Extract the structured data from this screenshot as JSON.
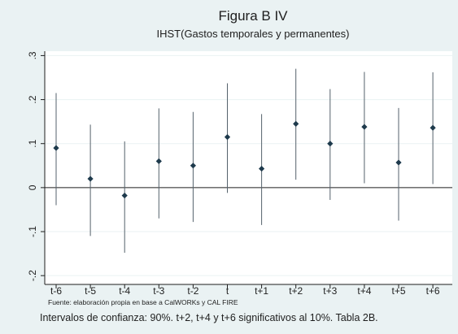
{
  "chart_data": {
    "type": "scatter",
    "title": "Figura B IV",
    "subtitle": "IHST(Gastos temporales y permanentes)",
    "categories": [
      "t-6",
      "t-5",
      "t-4",
      "t-3",
      "t-2",
      "t",
      "t+1",
      "t+2",
      "t+3",
      "t+4",
      "t+5",
      "t+6"
    ],
    "estimates": [
      0.09,
      0.02,
      -0.018,
      0.06,
      0.05,
      0.115,
      0.043,
      0.145,
      0.1,
      0.138,
      0.057,
      0.136
    ],
    "ci_lower": [
      -0.04,
      -0.11,
      -0.148,
      -0.07,
      -0.078,
      -0.012,
      -0.085,
      0.018,
      -0.028,
      0.01,
      -0.075,
      0.008
    ],
    "ci_upper": [
      0.215,
      0.143,
      0.105,
      0.18,
      0.172,
      0.237,
      0.167,
      0.27,
      0.224,
      0.263,
      0.181,
      0.262
    ],
    "ylim": [
      -0.22,
      0.31
    ],
    "yticks": [
      ".3",
      ".2",
      ".1",
      "0",
      "-.1",
      "-.2"
    ],
    "ytick_values": [
      0.3,
      0.2,
      0.1,
      0,
      -0.1,
      -0.2
    ],
    "reference_line": 0,
    "grid": true,
    "xlabel": "",
    "ylabel": ""
  },
  "source_note": "Fuente: elaboración propia en base a CalWORKs y CAL FIRE",
  "footnote": "Intervalos de confianza: 90%. t+2, t+4 y t+6 significativos al 10%. Tabla 2B.",
  "colors": {
    "background": "#eaf2f3",
    "plot_area": "#ffffff",
    "grid": "#eaf2f3",
    "marker": "#1e3a4c",
    "ci_line": "#55626c",
    "zero_line": "#1e1e1e",
    "text": "#1e1e1e"
  }
}
